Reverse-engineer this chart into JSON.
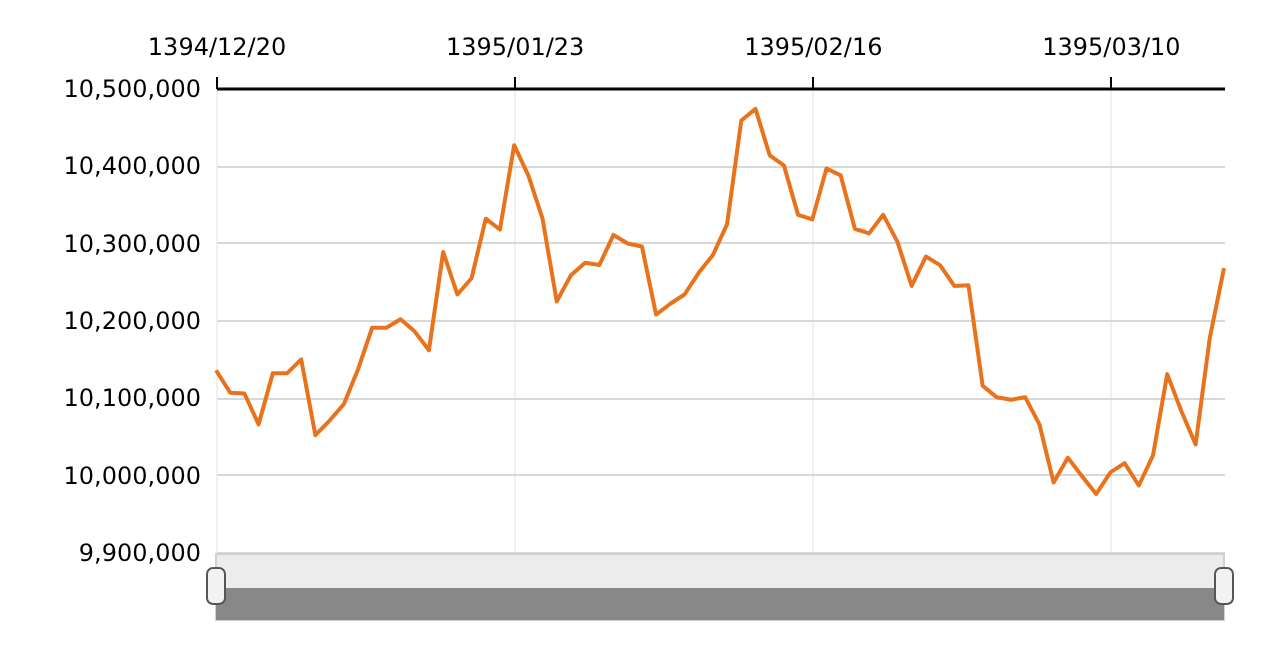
{
  "chart_data": {
    "type": "line",
    "categories": [
      "1394/12/20",
      null,
      null,
      null,
      null,
      null,
      null,
      null,
      null,
      null,
      null,
      null,
      null,
      null,
      null,
      null,
      null,
      null,
      null,
      null,
      null,
      "1395/01/23",
      null,
      null,
      null,
      null,
      null,
      null,
      null,
      null,
      null,
      null,
      null,
      null,
      null,
      null,
      null,
      null,
      null,
      null,
      null,
      null,
      "1395/02/16",
      null,
      null,
      null,
      null,
      null,
      null,
      null,
      null,
      null,
      null,
      null,
      null,
      null,
      null,
      null,
      null,
      null,
      null,
      null,
      null,
      "1395/03/10",
      null,
      null,
      null,
      null,
      null,
      null,
      null,
      null
    ],
    "series": [
      {
        "color": "#e8731c",
        "values": [
          10135000,
          10106000,
          10105000,
          10065000,
          10131000,
          10131000,
          10149000,
          10051000,
          10070000,
          10091000,
          10136000,
          10190000,
          10190000,
          10201000,
          10185000,
          10161000,
          10288000,
          10233000,
          10254000,
          10331000,
          10317000,
          10426000,
          10387000,
          10331000,
          10224000,
          10258000,
          10274000,
          10271000,
          10310000,
          10299000,
          10295000,
          10207000,
          10221000,
          10233000,
          10261000,
          10284000,
          10324000,
          10458000,
          10473000,
          10413000,
          10400000,
          10336000,
          10330000,
          10396000,
          10387000,
          10318000,
          10312000,
          10336000,
          10301000,
          10244000,
          10282000,
          10271000,
          10244000,
          10245000,
          10115000,
          10100000,
          10097000,
          10100000,
          10065000,
          9990000,
          10022000,
          9998000,
          9975000,
          10003000,
          10015000,
          9986000,
          10025000,
          10130000,
          10082000,
          10039000,
          10177000,
          10267000
        ]
      }
    ],
    "ylim": [
      9900000,
      10500000
    ],
    "yticks": [
      {
        "value": 9900000,
        "label": "9,900,000"
      },
      {
        "value": 10000000,
        "label": "10,000,000"
      },
      {
        "value": 10100000,
        "label": "10,100,000"
      },
      {
        "value": 10200000,
        "label": "10,200,000"
      },
      {
        "value": 10300000,
        "label": "10,300,000"
      },
      {
        "value": 10400000,
        "label": "10,400,000"
      },
      {
        "value": 10500000,
        "label": "10,500,000"
      }
    ],
    "grid": true,
    "marker": "none",
    "line_style": "solid"
  }
}
